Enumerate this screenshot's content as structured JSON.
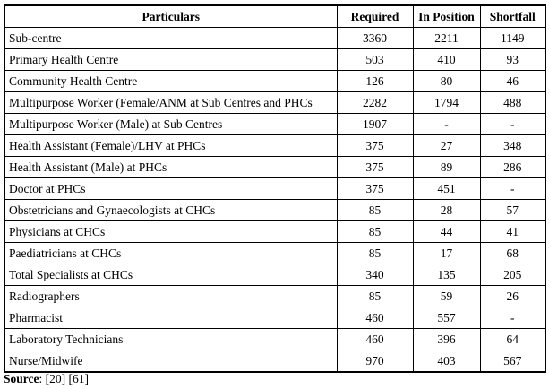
{
  "table": {
    "headers": {
      "particulars": "Particulars",
      "required": "Required",
      "in_position": "In Position",
      "shortfall": "Shortfall"
    },
    "rows": [
      [
        "Sub-centre",
        "3360",
        "2211",
        "1149"
      ],
      [
        "Primary Health Centre",
        "503",
        "410",
        "93"
      ],
      [
        "Community Health Centre",
        "126",
        "80",
        "46"
      ],
      [
        "Multipurpose Worker (Female/ANM at Sub Centres and PHCs",
        "2282",
        "1794",
        "488"
      ],
      [
        "Multipurpose Worker   (Male) at Sub Centres",
        "1907",
        "-",
        "-"
      ],
      [
        "Health Assistant (Female)/LHV at PHCs",
        "375",
        "27",
        "348"
      ],
      [
        "Health Assistant (Male) at PHCs",
        "375",
        "89",
        "286"
      ],
      [
        "Doctor at PHCs",
        "375",
        "451",
        "-"
      ],
      [
        "Obstetricians and Gynaecologists at CHCs",
        "85",
        "28",
        "57"
      ],
      [
        "Physicians at CHCs",
        "85",
        "44",
        "41"
      ],
      [
        "Paediatricians at CHCs",
        "85",
        "17",
        "68"
      ],
      [
        "Total Specialists at CHCs",
        "340",
        "135",
        "205"
      ],
      [
        "Radiographers",
        "85",
        "59",
        "26"
      ],
      [
        "Pharmacist",
        "460",
        "557",
        "-"
      ],
      [
        "Laboratory Technicians",
        "460",
        "396",
        "64"
      ],
      [
        "Nurse/Midwife",
        "970",
        "403",
        "567"
      ]
    ]
  },
  "source": {
    "label": "Source",
    "text": ": [20] [61]"
  }
}
